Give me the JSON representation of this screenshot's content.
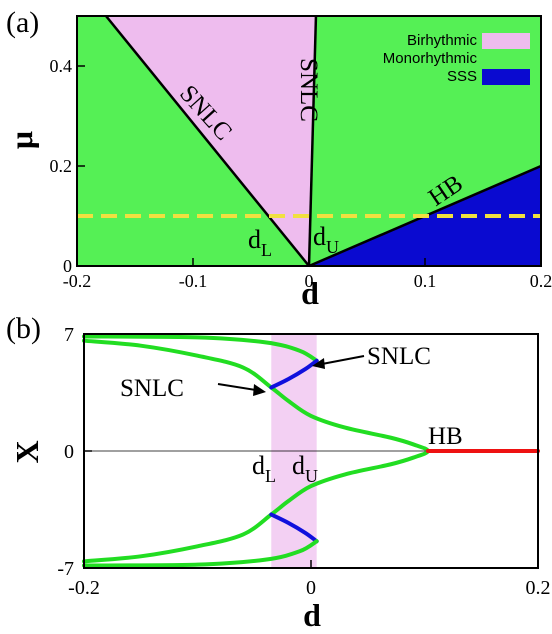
{
  "colors": {
    "birhythmic": "#eebcee",
    "monorhythmic": "#55f055",
    "sss": "#0a0ad0",
    "dashed_line": "#f0e040",
    "branch_green": "#22dd22",
    "branch_blue": "#1010dd",
    "branch_red": "#ee1111",
    "band": "#f3d0f3"
  },
  "chart_data": [
    {
      "panel_label": "(a)",
      "type": "area",
      "xlabel": "d",
      "ylabel": "μ",
      "xlim": [
        -0.2,
        0.2
      ],
      "ylim": [
        0,
        0.5
      ],
      "xticks": [
        -0.2,
        -0.1,
        0,
        0.1,
        0.2
      ],
      "xtick_labels": [
        "-0.2",
        "-0.1",
        "0",
        "0.1",
        "0.2"
      ],
      "yticks": [
        0,
        0.2,
        0.4
      ],
      "ytick_labels": [
        "0",
        "0.2",
        "0.4"
      ],
      "legend": {
        "placement": "top-right",
        "entries": [
          {
            "name": "Birhythmic",
            "color_key": "birhythmic"
          },
          {
            "name": "Monorhythmic",
            "color_key": "monorhythmic"
          },
          {
            "name": "SSS",
            "color_key": "sss"
          }
        ]
      },
      "regions": {
        "birhythmic": [
          [
            -0.175,
            0.5
          ],
          [
            0.006,
            0.5
          ],
          [
            0,
            0
          ]
        ],
        "sss": [
          [
            0,
            0
          ],
          [
            0.2,
            0.2
          ],
          [
            0.2,
            0
          ]
        ]
      },
      "curves": [
        {
          "label": "SNLC",
          "points": [
            [
              -0.175,
              0.5
            ],
            [
              0,
              0
            ]
          ]
        },
        {
          "label": "SNLC",
          "points": [
            [
              0,
              0
            ],
            [
              0.006,
              0.5
            ]
          ]
        },
        {
          "label": "HB",
          "points": [
            [
              0,
              0
            ],
            [
              0.2,
              0.2
            ]
          ]
        }
      ],
      "dashed_line_mu": 0.1,
      "annotations": [
        {
          "text": "d",
          "sub": "L",
          "d": -0.03
        },
        {
          "text": "d",
          "sub": "U",
          "d": 0.01
        }
      ]
    },
    {
      "panel_label": "(b)",
      "type": "line",
      "xlabel": "d",
      "ylabel": "X",
      "xlim": [
        -0.2,
        0.2
      ],
      "ylim": [
        -7,
        7
      ],
      "xticks": [
        -0.2,
        0,
        0.2
      ],
      "xtick_labels": [
        "-0.2",
        "0",
        "0.2"
      ],
      "yticks": [
        -7,
        0,
        7
      ],
      "ytick_labels": [
        "-7",
        "0",
        "7"
      ],
      "shaded_band": [
        -0.035,
        0.005
      ],
      "series": [
        {
          "color_key": "branch_green",
          "points": [
            [
              -0.2,
              6.6
            ],
            [
              -0.15,
              6.3
            ],
            [
              -0.1,
              5.7
            ],
            [
              -0.06,
              5.0
            ],
            [
              -0.035,
              3.8
            ],
            [
              -0.02,
              3.0
            ],
            [
              0.0,
              2.1
            ],
            [
              0.03,
              1.4
            ],
            [
              0.07,
              0.8
            ],
            [
              0.09,
              0.4
            ],
            [
              0.103,
              0.0
            ],
            [
              0.09,
              -0.4
            ],
            [
              0.07,
              -0.8
            ],
            [
              0.03,
              -1.4
            ],
            [
              0.0,
              -2.1
            ],
            [
              -0.02,
              -3.0
            ],
            [
              -0.035,
              -3.8
            ],
            [
              -0.06,
              -5.0
            ],
            [
              -0.1,
              -5.7
            ],
            [
              -0.15,
              -6.3
            ],
            [
              -0.2,
              -6.6
            ]
          ]
        },
        {
          "color_key": "branch_green",
          "points": [
            [
              0.005,
              5.4
            ],
            [
              -0.01,
              6.0
            ],
            [
              -0.04,
              6.5
            ],
            [
              -0.1,
              6.8
            ],
            [
              -0.2,
              6.85
            ]
          ]
        },
        {
          "color_key": "branch_blue",
          "points": [
            [
              -0.035,
              3.8
            ],
            [
              -0.02,
              4.3
            ],
            [
              -0.005,
              4.9
            ],
            [
              0.005,
              5.4
            ]
          ]
        },
        {
          "color_key": "branch_blue",
          "points": [
            [
              -0.035,
              -3.8
            ],
            [
              -0.02,
              -4.3
            ],
            [
              -0.005,
              -4.9
            ],
            [
              0.005,
              -5.4
            ]
          ]
        },
        {
          "color_key": "branch_green",
          "points": [
            [
              0.005,
              -5.4
            ],
            [
              -0.01,
              -6.0
            ],
            [
              -0.04,
              -6.5
            ],
            [
              -0.1,
              -6.8
            ],
            [
              -0.2,
              -6.85
            ]
          ]
        },
        {
          "color_key": "branch_red",
          "points": [
            [
              0.103,
              0.0
            ],
            [
              0.2,
              0.0
            ]
          ]
        }
      ],
      "annotations": [
        {
          "text": "SNLC",
          "target": [
            0.005,
            5.4
          ]
        },
        {
          "text": "SNLC",
          "target": [
            -0.035,
            3.8
          ]
        },
        {
          "text": "HB",
          "target": [
            0.103,
            0.0
          ]
        },
        {
          "text": "d",
          "sub": "L"
        },
        {
          "text": "d",
          "sub": "U"
        }
      ]
    }
  ]
}
